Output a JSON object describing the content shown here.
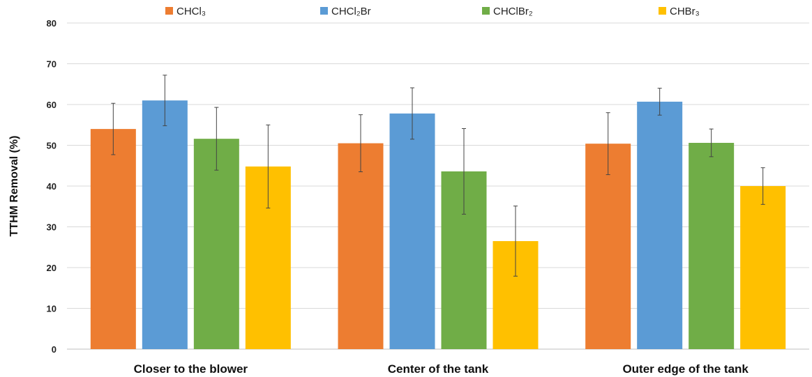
{
  "chart_data": {
    "type": "bar",
    "title": "",
    "xlabel": "",
    "ylabel": "TTHM Removal (%)",
    "ylim": [
      0,
      80
    ],
    "yticks": [
      0,
      10,
      20,
      30,
      40,
      50,
      60,
      70,
      80
    ],
    "grid": true,
    "legend_position": "top",
    "categories": [
      "Closer to the blower",
      "Center of the tank",
      "Outer edge of the tank"
    ],
    "series": [
      {
        "name": "CHCl₃",
        "color": "#ED7D31",
        "values": [
          54.0,
          50.5,
          50.4
        ],
        "errors": [
          6.3,
          7.0,
          7.6
        ]
      },
      {
        "name": "CHCl₂Br",
        "color": "#5B9BD5",
        "values": [
          61.0,
          57.8,
          60.7
        ],
        "errors": [
          6.2,
          6.3,
          3.3
        ]
      },
      {
        "name": "CHClBr₂",
        "color": "#70AD47",
        "values": [
          51.6,
          43.6,
          50.6
        ],
        "errors": [
          7.7,
          10.5,
          3.4
        ]
      },
      {
        "name": "CHBr₃",
        "color": "#FFC000",
        "values": [
          44.8,
          26.5,
          40.0
        ],
        "errors": [
          10.2,
          8.6,
          4.5
        ]
      }
    ]
  }
}
